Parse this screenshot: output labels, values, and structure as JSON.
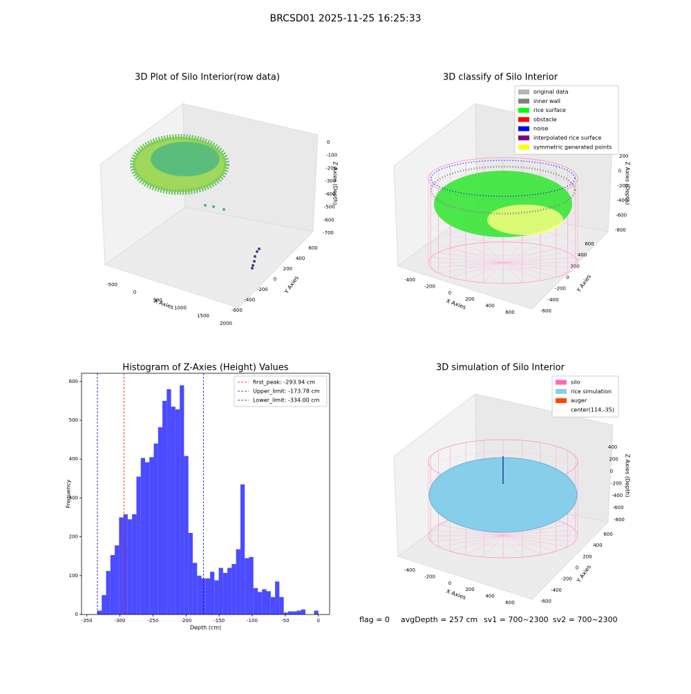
{
  "title": "BRCSD01 2025-11-25 16:25:33",
  "footer": [
    "flag = 0",
    "avgDepth = 257 cm",
    "sv1 = 700~2300",
    "sv2 = 700~2300"
  ],
  "chart_data": [
    {
      "type": "scatter3d",
      "title": "3D Plot of Silo Interior(row data)",
      "xlabel": "X Axies",
      "ylabel": "Y Axies",
      "zlabel": "Z Axies (Depth)",
      "xticks": [
        -500,
        0,
        500,
        1000,
        1500,
        2000
      ],
      "yticks": [
        -600,
        -400,
        -200,
        0,
        200,
        400,
        600
      ],
      "zticks": [
        0,
        -100,
        -200,
        -300,
        -400,
        -500,
        -600,
        -700
      ]
    },
    {
      "type": "scatter3d",
      "title": "3D classify of Silo Interior",
      "xlabel": "X Axies",
      "ylabel": "Y Axies",
      "zlabel": "Z Axies (Depth)",
      "xticks": [
        -400,
        -200,
        0,
        200,
        400,
        600
      ],
      "yticks": [
        -600,
        -400,
        -200,
        0,
        200,
        400,
        600
      ],
      "zticks": [
        200,
        0,
        -200,
        -400,
        -600,
        -800
      ],
      "legend": [
        {
          "name": "original data",
          "color": "#b3b3b3"
        },
        {
          "name": "inner wall",
          "color": "#808080"
        },
        {
          "name": "rice surface",
          "color": "#00ff00"
        },
        {
          "name": "obstacle",
          "color": "#ff0000"
        },
        {
          "name": "noise",
          "color": "#0000ff"
        },
        {
          "name": "interpolated rice surface",
          "color": "#800080"
        },
        {
          "name": "symmetric generated points",
          "color": "#ffff00"
        }
      ]
    },
    {
      "type": "histogram",
      "title": "Histogram of Z-Axies (Height) Values",
      "xlabel": "Depth (cm)",
      "ylabel": "Frequency",
      "color": "#4b4bff",
      "bins": [
        -334,
        -327.45,
        -320.9,
        -314.35,
        -307.8,
        -301.25,
        -294.7,
        -288.15,
        -281.6,
        -275.05,
        -268.5,
        -261.95,
        -255.4,
        -248.85,
        -242.3,
        -235.75,
        -229.2,
        -222.65,
        -216.1,
        -209.55,
        -203,
        -196.45,
        -189.9,
        -183.35,
        -176.8,
        -170.25,
        -163.7,
        -157.15,
        -150.6,
        -144.05,
        -137.5,
        -130.95,
        -124.4,
        -117.85,
        -111.3,
        -104.75,
        -98.2,
        -91.65,
        -85.1,
        -78.55,
        -72,
        -65.45,
        -58.9,
        -52.35,
        -45.8,
        -39.25,
        -32.7,
        -26.15,
        -19.6,
        -13.05,
        -6.5,
        0.05
      ],
      "values": [
        10,
        50,
        112,
        153,
        178,
        250,
        258,
        245,
        258,
        355,
        403,
        392,
        405,
        440,
        482,
        550,
        580,
        535,
        528,
        590,
        408,
        210,
        133,
        100,
        93,
        93,
        110,
        88,
        120,
        107,
        120,
        130,
        168,
        335,
        145,
        148,
        68,
        58,
        65,
        60,
        45,
        85,
        45,
        5,
        8,
        8,
        10,
        13,
        0,
        0,
        10
      ],
      "xlim": [
        -358,
        17
      ],
      "ylim": [
        0,
        621
      ],
      "xticks": [
        -350,
        -300,
        -250,
        -200,
        -150,
        -100,
        -50,
        0
      ],
      "yticks": [
        0,
        100,
        200,
        300,
        400,
        500,
        600
      ],
      "lines": [
        {
          "label": "first_peak: -293.94 cm",
          "value": -293.94,
          "color": "#ff0000"
        },
        {
          "label": "Upper_limit: -173.78 cm",
          "value": -173.78,
          "color": "#0000ff"
        },
        {
          "label": "Lower_limit: -334.00 cm",
          "value": -334.0,
          "color": "#0000aa"
        }
      ],
      "legend_position": "upper right"
    },
    {
      "type": "surface3d",
      "title": "3D simulation of Silo Interior",
      "xlabel": "X Axies",
      "ylabel": "Y Axies",
      "zlabel": "Z Axies (Depth)",
      "xticks": [
        -400,
        -200,
        0,
        200,
        400,
        600
      ],
      "yticks": [
        -600,
        -400,
        -200,
        0,
        200,
        400,
        600
      ],
      "zticks": [
        400,
        200,
        0,
        -200,
        -400,
        -600,
        -800
      ],
      "legend": [
        {
          "name": "silo",
          "color": "#ff69b4"
        },
        {
          "name": "rice simulation",
          "color": "#87ceeb"
        },
        {
          "name": "auger",
          "color": "#ff4500"
        },
        {
          "name": "center(114,-35)",
          "color": null
        }
      ]
    }
  ]
}
